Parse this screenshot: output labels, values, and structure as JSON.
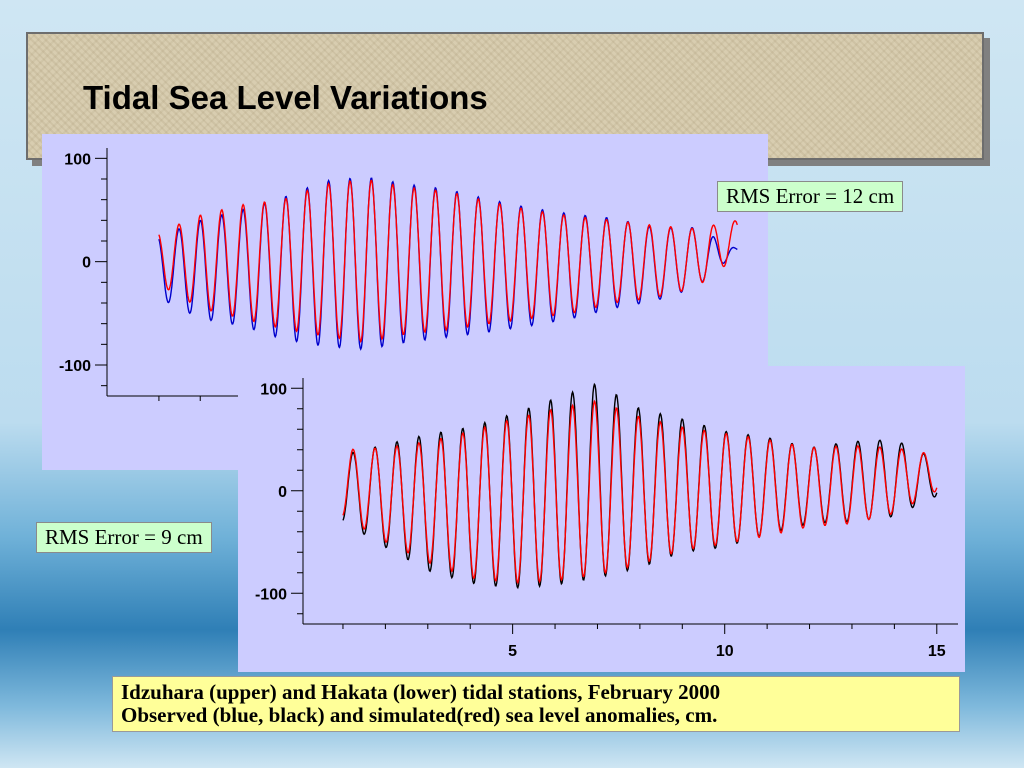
{
  "title": "Tidal Sea Level Variations",
  "upper_rms_label": "RMS Error = 12 cm",
  "lower_rms_label": "RMS Error = 9 cm",
  "caption_line1": "Idzuhara (upper) and Hakata (lower) tidal stations, February 2000",
  "caption_line2": "Observed (blue, black) and simulated(red)  sea level anomalies, cm.",
  "colors": {
    "observed_upper": "#0000cc",
    "observed_lower": "#000000",
    "simulated": "#ff0000"
  },
  "chart_data": [
    {
      "type": "line",
      "station": "Idzuhara",
      "x_range": [
        0.3,
        15.5
      ],
      "ylim": [
        -130,
        110
      ],
      "yticks": [
        100,
        0,
        -100
      ],
      "xticks": [],
      "period_days": 0.5175,
      "series": [
        {
          "x": [
            1,
            2,
            3,
            4,
            5,
            6,
            7,
            8,
            9,
            10,
            11,
            12,
            13,
            14,
            15
          ],
          "high": [
            24,
            40,
            50,
            62,
            78,
            82,
            75,
            70,
            60,
            52,
            46,
            42,
            33,
            33,
            12
          ],
          "low": [
            -35,
            -55,
            -62,
            -75,
            -82,
            -85,
            -78,
            -73,
            -68,
            -62,
            -55,
            -45,
            -38,
            -25,
            10
          ]
        },
        {
          "x": [
            1,
            2,
            3,
            4,
            5,
            6,
            7,
            8,
            9,
            10,
            11,
            12,
            13,
            14,
            15
          ],
          "high": [
            28,
            45,
            55,
            60,
            75,
            80,
            72,
            68,
            58,
            50,
            44,
            40,
            35,
            32,
            40
          ],
          "low": [
            -22,
            -45,
            -55,
            -65,
            -72,
            -78,
            -70,
            -66,
            -60,
            -55,
            -50,
            -40,
            -35,
            -25,
            5
          ]
        }
      ]
    },
    {
      "type": "line",
      "station": "Hakata",
      "x_range": [
        0.6,
        15.5
      ],
      "ylim": [
        -130,
        110
      ],
      "yticks": [
        100,
        0,
        -100
      ],
      "xticks": [
        5,
        10,
        15
      ],
      "period_days": 0.5175,
      "series": [
        {
          "x": [
            1,
            2,
            3,
            4,
            5,
            6,
            7,
            8,
            9,
            10,
            11,
            12,
            13,
            14,
            15
          ],
          "high": [
            35,
            45,
            55,
            62,
            75,
            90,
            105,
            80,
            70,
            58,
            52,
            42,
            48,
            50,
            30
          ],
          "low": [
            -30,
            -55,
            -78,
            -90,
            -95,
            -92,
            -85,
            -75,
            -60,
            -55,
            -42,
            -32,
            -30,
            -25,
            -5
          ]
        },
        {
          "x": [
            1,
            2,
            3,
            4,
            5,
            6,
            7,
            8,
            9,
            10,
            11,
            12,
            13,
            14,
            15
          ],
          "high": [
            40,
            42,
            48,
            58,
            70,
            80,
            88,
            72,
            62,
            56,
            50,
            42,
            44,
            42,
            35
          ],
          "low": [
            -25,
            -50,
            -70,
            -85,
            -90,
            -88,
            -82,
            -72,
            -58,
            -52,
            -44,
            -35,
            -32,
            -22,
            0
          ]
        }
      ]
    }
  ]
}
